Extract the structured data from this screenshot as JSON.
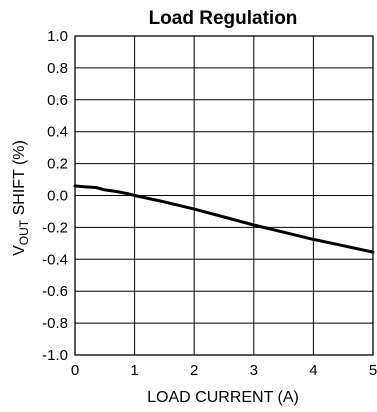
{
  "chart_data": {
    "type": "line",
    "title": "Load Regulation",
    "xlabel": "LOAD CURRENT (A)",
    "ylabel": {
      "main": "V",
      "sub": "OUT",
      "rest": " SHIFT (%)"
    },
    "xlim": [
      0,
      5
    ],
    "ylim": [
      -1.0,
      1.0
    ],
    "x_ticks": [
      0,
      1,
      2,
      3,
      4,
      5
    ],
    "x_tick_labels": [
      "0",
      "1",
      "2",
      "3",
      "4",
      "5"
    ],
    "y_ticks": [
      1.0,
      0.8,
      0.6,
      0.4,
      0.2,
      0.0,
      -0.2,
      -0.4,
      -0.6,
      -0.8,
      -1.0
    ],
    "y_tick_labels": [
      "1.0",
      "0.8",
      "0.6",
      "0.4",
      "0.2",
      "0.0",
      "-0.2",
      "-0.4",
      "-0.6",
      "-0.8",
      "-1.0"
    ],
    "grid": true,
    "series": [
      {
        "x": [
          0,
          0.15,
          0.35,
          0.5,
          0.7,
          0.9,
          1.0,
          1.5,
          2.0,
          2.5,
          3.0,
          3.5,
          4.0,
          4.5,
          5.0
        ],
        "y": [
          0.06,
          0.055,
          0.05,
          0.035,
          0.025,
          0.01,
          0.0,
          -0.04,
          -0.085,
          -0.135,
          -0.185,
          -0.23,
          -0.275,
          -0.315,
          -0.355
        ]
      }
    ]
  }
}
